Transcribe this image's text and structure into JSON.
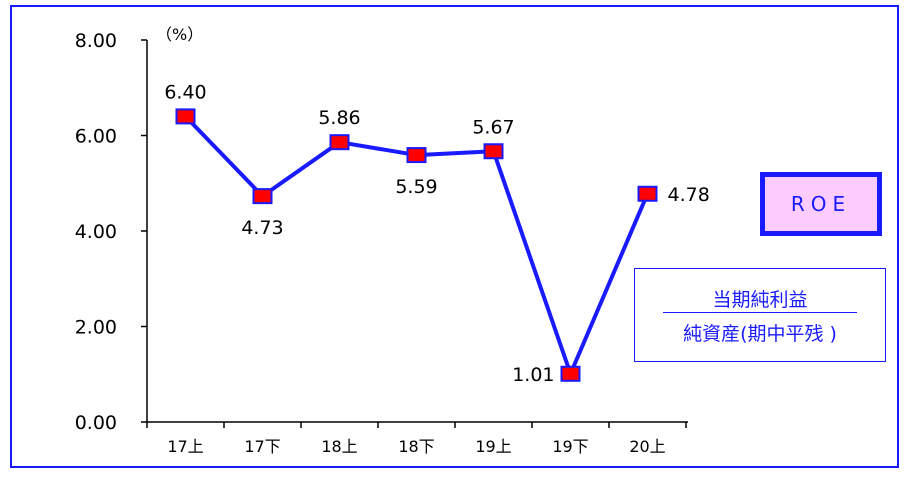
{
  "chart_data": {
    "type": "line",
    "categories": [
      "17上",
      "17下",
      "18上",
      "18下",
      "19上",
      "19下",
      "20上"
    ],
    "series": [
      {
        "values": [
          6.4,
          4.73,
          5.86,
          5.59,
          5.67,
          1.01,
          4.78
        ]
      }
    ],
    "data_labels": [
      "6.40",
      "4.73",
      "5.86",
      "5.59",
      "5.67",
      "1.01",
      "4.78"
    ],
    "y_ticks": [
      "0.00",
      "2.00",
      "4.00",
      "6.00",
      "8.00"
    ],
    "ylim": [
      0,
      8
    ],
    "yunit": "（%）",
    "grid": false,
    "legend_box": "ROE",
    "formula": {
      "numerator": "当期純利益",
      "denominator": "純資産(期中平残 )"
    },
    "colors": {
      "line": "#1a1aff",
      "marker_fill": "#ff0000",
      "marker_edge": "#1a1aff",
      "box_fill": "#ffccff",
      "frame": "#1a1aff"
    }
  }
}
